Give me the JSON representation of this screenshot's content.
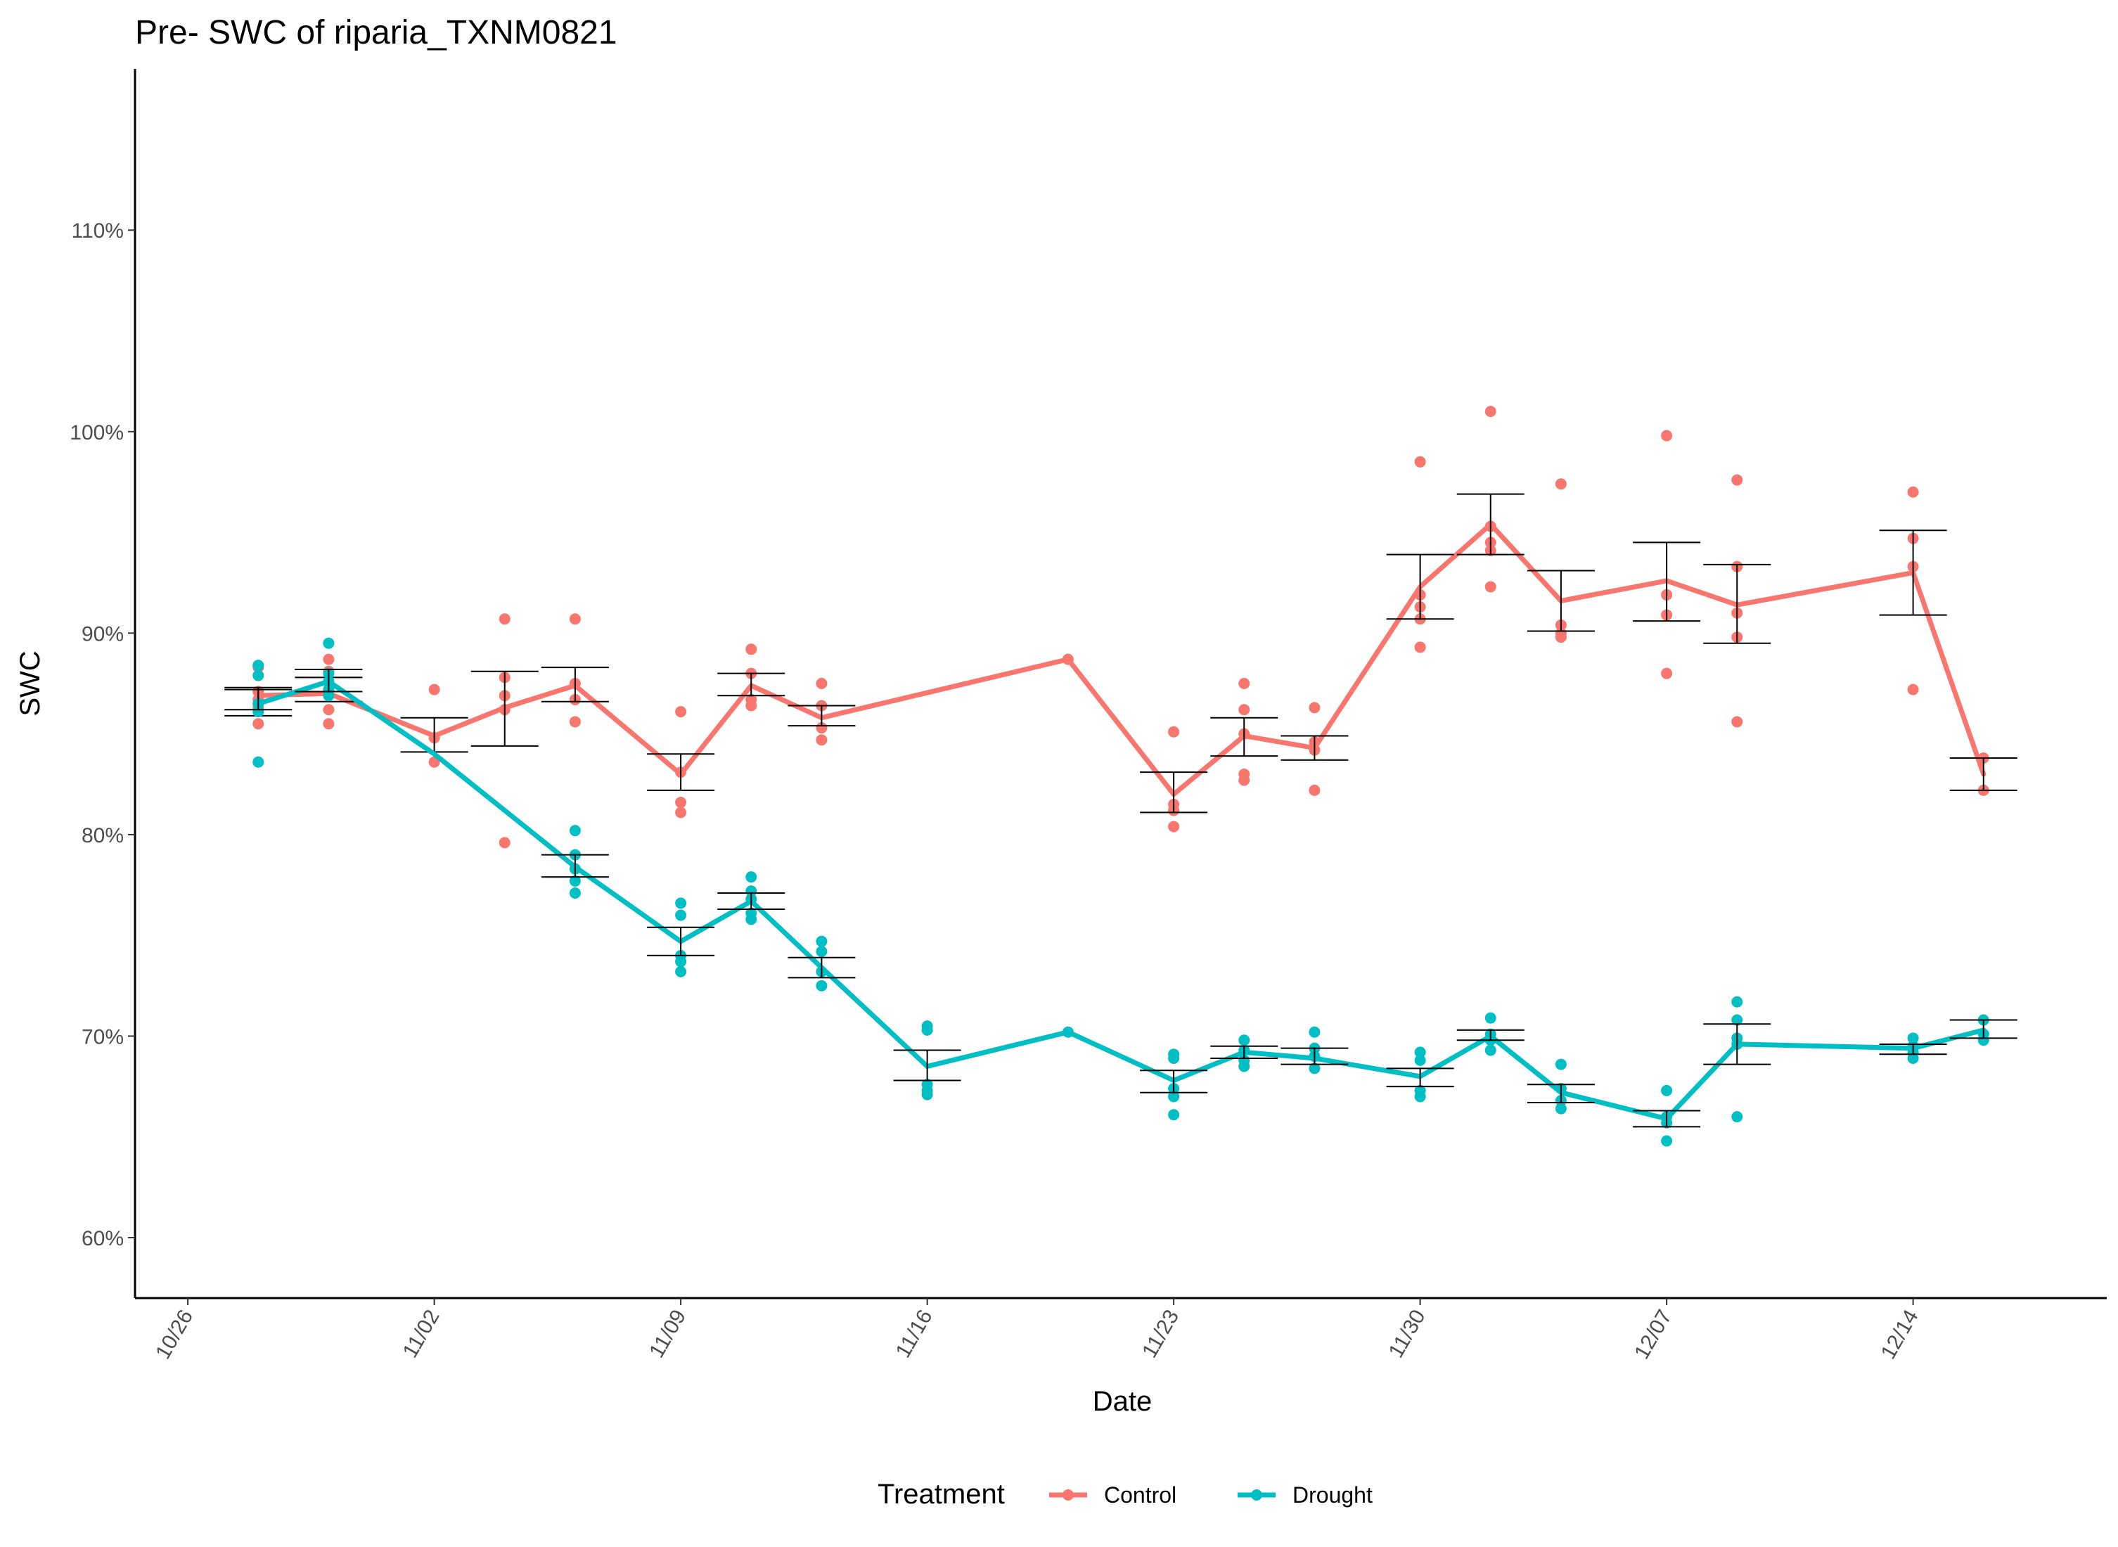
{
  "chart_data": {
    "type": "line",
    "title": "Pre- SWC of riparia_TXNM0821",
    "xlabel": "Date",
    "ylabel": "SWC",
    "x_ticks": [
      "10/26",
      "11/02",
      "11/09",
      "11/16",
      "11/23",
      "11/30",
      "12/07",
      "12/14"
    ],
    "y_ticks": [
      "60%",
      "70%",
      "80%",
      "90%",
      "100%",
      "110%"
    ],
    "y_unit": "%",
    "ylim": [
      57,
      118
    ],
    "xlim_days": [
      -1.5,
      54.5
    ],
    "grid": false,
    "legend": {
      "title": "Treatment",
      "position": "bottom"
    },
    "series": [
      {
        "name": "Control",
        "color": "#F8766D",
        "points": [
          {
            "x": "10/28",
            "mean": 86.9,
            "err": [
              85.9,
              87.2
            ],
            "obs": [
              88.3,
              87.1,
              86.7,
              85.5,
              86.3
            ]
          },
          {
            "x": "10/30",
            "mean": 87.0,
            "err": [
              86.6,
              87.8
            ],
            "obs": [
              88.7,
              88.1,
              87.2,
              86.2,
              85.5
            ]
          },
          {
            "x": "11/02",
            "mean": 84.9,
            "err": [
              84.1,
              85.8
            ],
            "obs": [
              87.2,
              84.8,
              83.6
            ]
          },
          {
            "x": "11/04",
            "mean": 86.3,
            "err": [
              84.4,
              88.1
            ],
            "obs": [
              90.7,
              87.8,
              86.9,
              86.2,
              79.6
            ]
          },
          {
            "x": "11/06",
            "mean": 87.4,
            "err": [
              86.6,
              88.3
            ],
            "obs": [
              90.7,
              87.5,
              86.7,
              85.6
            ]
          },
          {
            "x": "11/09",
            "mean": 83.0,
            "err": [
              82.2,
              84.0
            ],
            "obs": [
              86.1,
              83.1,
              81.6,
              81.1
            ]
          },
          {
            "x": "11/11",
            "mean": 87.4,
            "err": [
              86.9,
              88.0
            ],
            "obs": [
              89.2,
              88.0,
              86.7,
              86.4
            ]
          },
          {
            "x": "11/13",
            "mean": 85.8,
            "err": [
              85.4,
              86.4
            ],
            "obs": [
              87.5,
              86.4,
              85.3,
              84.7
            ]
          },
          {
            "x": "11/20",
            "mean": 88.7,
            "err": null,
            "obs": [
              88.7
            ]
          },
          {
            "x": "11/23",
            "mean": 82.0,
            "err": [
              81.1,
              83.1
            ],
            "obs": [
              85.1,
              81.5,
              81.2,
              80.4
            ]
          },
          {
            "x": "11/25",
            "mean": 84.9,
            "err": [
              83.9,
              85.8
            ],
            "obs": [
              87.5,
              86.2,
              85.0,
              83.0,
              82.7
            ]
          },
          {
            "x": "11/27",
            "mean": 84.3,
            "err": [
              83.7,
              84.9
            ],
            "obs": [
              86.3,
              84.6,
              84.2,
              82.2
            ]
          },
          {
            "x": "11/30",
            "mean": 92.3,
            "err": [
              90.7,
              93.9
            ],
            "obs": [
              98.5,
              91.9,
              91.3,
              90.7,
              89.3
            ]
          },
          {
            "x": "12/02",
            "mean": 95.4,
            "err": [
              93.9,
              96.9
            ],
            "obs": [
              101.0,
              95.3,
              94.5,
              94.1,
              92.3
            ]
          },
          {
            "x": "12/04",
            "mean": 91.6,
            "err": [
              90.1,
              93.1
            ],
            "obs": [
              97.4,
              90.4,
              90.0,
              89.8
            ]
          },
          {
            "x": "12/07",
            "mean": 92.6,
            "err": [
              90.6,
              94.5
            ],
            "obs": [
              99.8,
              91.9,
              90.9,
              88.0
            ]
          },
          {
            "x": "12/09",
            "mean": 91.4,
            "err": [
              89.5,
              93.4
            ],
            "obs": [
              97.6,
              93.3,
              91.0,
              89.8,
              85.6
            ]
          },
          {
            "x": "12/14",
            "mean": 93.0,
            "err": [
              90.9,
              95.1
            ],
            "obs": [
              97.0,
              94.7,
              93.3,
              87.2
            ]
          },
          {
            "x": "12/16",
            "mean": 83.0,
            "err": [
              82.2,
              83.8
            ],
            "obs": [
              83.8,
              82.2
            ]
          }
        ]
      },
      {
        "name": "Drought",
        "color": "#00BFC4",
        "points": [
          {
            "x": "10/28",
            "mean": 86.5,
            "err": [
              86.2,
              87.3
            ],
            "obs": [
              88.4,
              87.9,
              86.5,
              86.1,
              83.6
            ]
          },
          {
            "x": "10/30",
            "mean": 87.6,
            "err": [
              87.1,
              88.2
            ],
            "obs": [
              89.5,
              88.0,
              87.6,
              87.2,
              86.9
            ]
          },
          {
            "x": "11/02",
            "mean": 84.0,
            "err": null,
            "obs": []
          },
          {
            "x": "11/06",
            "mean": 78.4,
            "err": [
              77.9,
              79.0
            ],
            "obs": [
              80.2,
              79.0,
              78.3,
              77.7,
              77.1
            ]
          },
          {
            "x": "11/09",
            "mean": 74.7,
            "err": [
              74.0,
              75.4
            ],
            "obs": [
              76.6,
              76.0,
              74.0,
              73.7,
              73.2
            ]
          },
          {
            "x": "11/11",
            "mean": 76.7,
            "err": [
              76.3,
              77.1
            ],
            "obs": [
              77.9,
              77.2,
              76.8,
              76.1,
              75.8
            ]
          },
          {
            "x": "11/13",
            "mean": 73.4,
            "err": [
              72.9,
              73.9
            ],
            "obs": [
              74.7,
              74.2,
              73.2,
              72.5
            ]
          },
          {
            "x": "11/16",
            "mean": 68.5,
            "err": [
              67.8,
              69.3
            ],
            "obs": [
              70.5,
              70.3,
              67.6,
              67.3,
              67.1
            ]
          },
          {
            "x": "11/20",
            "mean": 70.2,
            "err": null,
            "obs": [
              70.2
            ]
          },
          {
            "x": "11/23",
            "mean": 67.8,
            "err": [
              67.2,
              68.3
            ],
            "obs": [
              69.1,
              68.9,
              67.4,
              67.0,
              66.1
            ]
          },
          {
            "x": "11/25",
            "mean": 69.2,
            "err": [
              68.9,
              69.5
            ],
            "obs": [
              69.8,
              69.3,
              68.8,
              68.5
            ]
          },
          {
            "x": "11/27",
            "mean": 68.9,
            "err": [
              68.6,
              69.4
            ],
            "obs": [
              70.2,
              69.4,
              69.0,
              68.4
            ]
          },
          {
            "x": "11/30",
            "mean": 68.0,
            "err": [
              67.5,
              68.4
            ],
            "obs": [
              69.2,
              68.8,
              67.3,
              67.0
            ]
          },
          {
            "x": "12/02",
            "mean": 70.0,
            "err": [
              69.8,
              70.3
            ],
            "obs": [
              70.9,
              70.1,
              69.8,
              69.3
            ]
          },
          {
            "x": "12/04",
            "mean": 67.2,
            "err": [
              66.7,
              67.6
            ],
            "obs": [
              68.6,
              67.4,
              66.8,
              66.4
            ]
          },
          {
            "x": "12/07",
            "mean": 65.9,
            "err": [
              65.5,
              66.3
            ],
            "obs": [
              67.3,
              66.0,
              65.7,
              64.8
            ]
          },
          {
            "x": "12/09",
            "mean": 69.6,
            "err": [
              68.6,
              70.6
            ],
            "obs": [
              71.7,
              70.8,
              69.9,
              69.6,
              66.0
            ]
          },
          {
            "x": "12/14",
            "mean": 69.4,
            "err": [
              69.1,
              69.6
            ],
            "obs": [
              69.9,
              69.5,
              69.2,
              68.9
            ]
          },
          {
            "x": "12/16",
            "mean": 70.3,
            "err": [
              69.9,
              70.8
            ],
            "obs": [
              70.8,
              70.1,
              69.8
            ]
          }
        ]
      }
    ]
  }
}
